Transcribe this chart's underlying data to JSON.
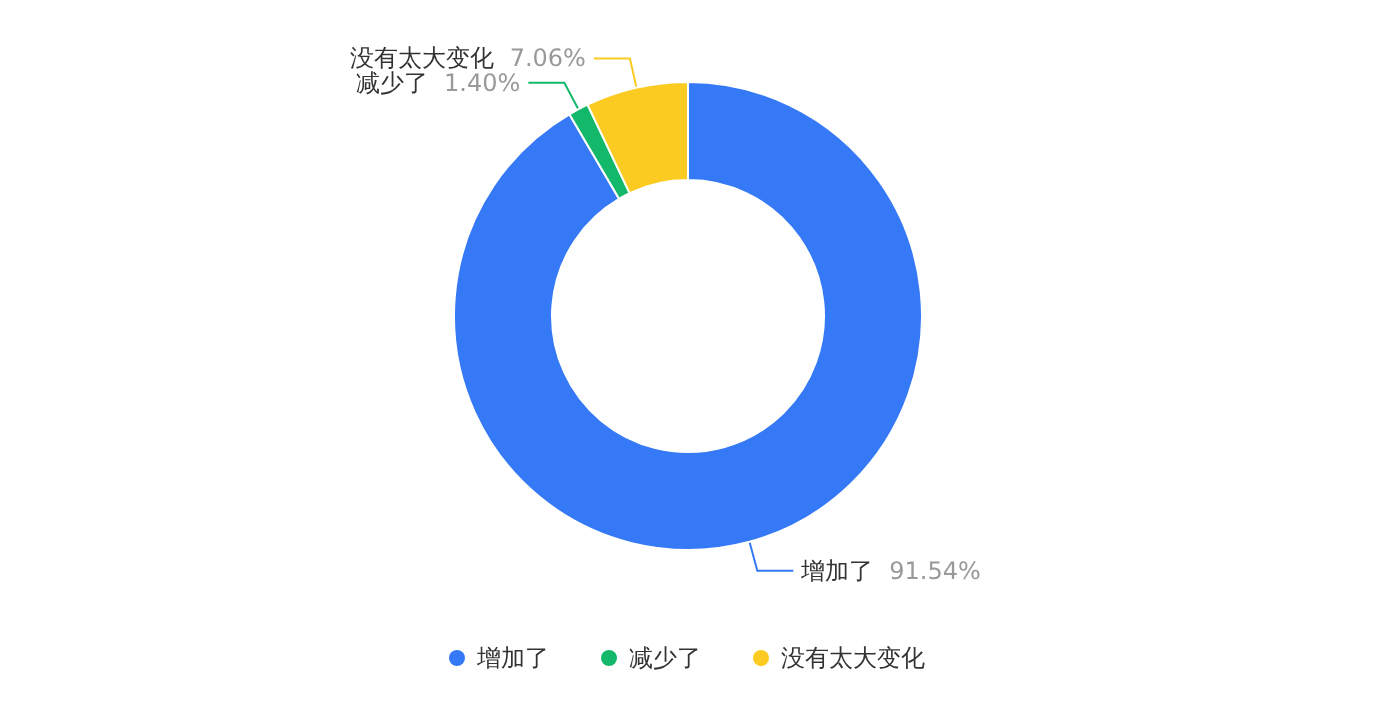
{
  "chart_data": {
    "type": "donut",
    "categories": [
      "增加了",
      "减少了",
      "没有太大变化"
    ],
    "values": [
      91.54,
      1.4,
      7.06
    ],
    "value_labels": [
      "91.54%",
      "1.40%",
      "7.06%"
    ],
    "colors": [
      "#3579f6",
      "#14b86a",
      "#fbcb21"
    ],
    "legend": "bottom"
  }
}
